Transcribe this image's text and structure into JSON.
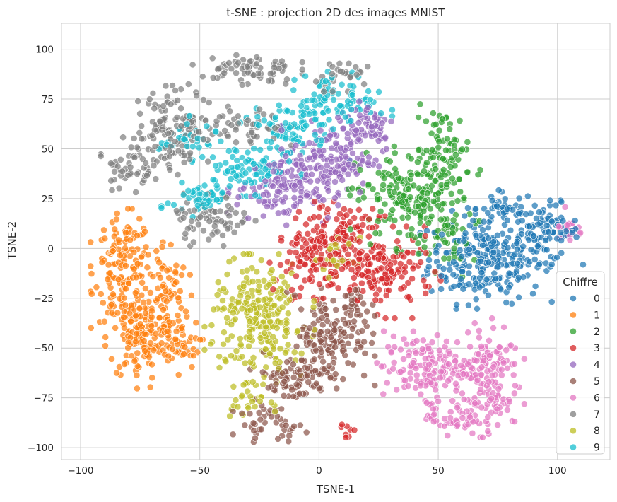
{
  "chart_data": {
    "type": "scatter",
    "title": "t-SNE : projection 2D des images MNIST",
    "xlabel": "TSNE-1",
    "ylabel": "TSNE-2",
    "xlim": [
      -108,
      122
    ],
    "ylim": [
      -106,
      113
    ],
    "xticks": [
      -100,
      -50,
      0,
      50,
      100
    ],
    "yticks": [
      -100,
      -75,
      -50,
      -25,
      0,
      25,
      50,
      75,
      100
    ],
    "xtick_labels": [
      "−100",
      "−50",
      "0",
      "50",
      "100"
    ],
    "ytick_labels": [
      "−100",
      "−75",
      "−50",
      "−25",
      "0",
      "25",
      "50",
      "75",
      "100"
    ],
    "grid": true,
    "legend": {
      "title": "Chiffre",
      "placement": "bottom-right"
    },
    "series": [
      {
        "name": "0",
        "color": "#1f77b4",
        "clusters": [
          {
            "cx": 70,
            "cy": -5,
            "sx": 12,
            "sy": 11,
            "n": 260
          },
          {
            "cx": 95,
            "cy": 8,
            "sx": 7,
            "sy": 7,
            "n": 90
          },
          {
            "cx": 78,
            "cy": 20,
            "sx": 6,
            "sy": 4,
            "n": 40
          }
        ]
      },
      {
        "name": "1",
        "color": "#ff7f0e",
        "clusters": [
          {
            "cx": -82,
            "cy": -10,
            "sx": 6,
            "sy": 13,
            "n": 140
          },
          {
            "cx": -75,
            "cy": -45,
            "sx": 7,
            "sy": 11,
            "n": 130
          },
          {
            "cx": -65,
            "cy": -25,
            "sx": 5,
            "sy": 15,
            "n": 90
          },
          {
            "cx": -58,
            "cy": -48,
            "sx": 4,
            "sy": 6,
            "n": 30
          }
        ]
      },
      {
        "name": "2",
        "color": "#2ca02c",
        "clusters": [
          {
            "cx": 40,
            "cy": 25,
            "sx": 12,
            "sy": 12,
            "n": 220
          },
          {
            "cx": 52,
            "cy": 50,
            "sx": 6,
            "sy": 10,
            "n": 60
          },
          {
            "cx": 58,
            "cy": 0,
            "sx": 4,
            "sy": 7,
            "n": 25
          }
        ]
      },
      {
        "name": "3",
        "color": "#d62728",
        "clusters": [
          {
            "cx": 0,
            "cy": -5,
            "sx": 9,
            "sy": 9,
            "n": 140
          },
          {
            "cx": 28,
            "cy": -12,
            "sx": 10,
            "sy": 10,
            "n": 140
          },
          {
            "cx": 10,
            "cy": 12,
            "sx": 8,
            "sy": 5,
            "n": 60
          },
          {
            "cx": 12,
            "cy": -92,
            "sx": 1.5,
            "sy": 2,
            "n": 8
          }
        ]
      },
      {
        "name": "4",
        "color": "#9467bd",
        "clusters": [
          {
            "cx": -15,
            "cy": 30,
            "sx": 10,
            "sy": 8,
            "n": 130
          },
          {
            "cx": 5,
            "cy": 45,
            "sx": 9,
            "sy": 9,
            "n": 130
          },
          {
            "cx": 20,
            "cy": 62,
            "sx": 6,
            "sy": 7,
            "n": 60
          }
        ]
      },
      {
        "name": "5",
        "color": "#8c564b",
        "clusters": [
          {
            "cx": 5,
            "cy": -45,
            "sx": 8,
            "sy": 11,
            "n": 140
          },
          {
            "cx": -12,
            "cy": -65,
            "sx": 8,
            "sy": 6,
            "n": 80
          },
          {
            "cx": -20,
            "cy": -88,
            "sx": 7,
            "sy": 4,
            "n": 40
          },
          {
            "cx": 15,
            "cy": -30,
            "sx": 4,
            "sy": 6,
            "n": 30
          }
        ]
      },
      {
        "name": "6",
        "color": "#e377c2",
        "clusters": [
          {
            "cx": 45,
            "cy": -60,
            "sx": 9,
            "sy": 8,
            "n": 140
          },
          {
            "cx": 70,
            "cy": -65,
            "sx": 7,
            "sy": 13,
            "n": 140
          },
          {
            "cx": 57,
            "cy": -85,
            "sx": 6,
            "sy": 4,
            "n": 50
          },
          {
            "cx": 105,
            "cy": 12,
            "sx": 3,
            "sy": 6,
            "n": 20
          }
        ]
      },
      {
        "name": "7",
        "color": "#7f7f7f",
        "clusters": [
          {
            "cx": -60,
            "cy": 60,
            "sx": 8,
            "sy": 10,
            "n": 130
          },
          {
            "cx": -80,
            "cy": 42,
            "sx": 5,
            "sy": 6,
            "n": 50
          },
          {
            "cx": -30,
            "cy": 90,
            "sx": 10,
            "sy": 4,
            "n": 70
          },
          {
            "cx": -45,
            "cy": 15,
            "sx": 8,
            "sy": 6,
            "n": 70
          },
          {
            "cx": -30,
            "cy": 60,
            "sx": 8,
            "sy": 6,
            "n": 50
          },
          {
            "cx": 10,
            "cy": 88,
            "sx": 6,
            "sy": 4,
            "n": 30
          }
        ]
      },
      {
        "name": "8",
        "color": "#bcbd22",
        "clusters": [
          {
            "cx": -25,
            "cy": -35,
            "sx": 10,
            "sy": 14,
            "n": 240
          },
          {
            "cx": -30,
            "cy": -75,
            "sx": 5,
            "sy": 4,
            "n": 30
          },
          {
            "cx": 8,
            "cy": -5,
            "sx": 4,
            "sy": 5,
            "n": 25
          }
        ]
      },
      {
        "name": "9",
        "color": "#17becf",
        "clusters": [
          {
            "cx": -30,
            "cy": 40,
            "sx": 10,
            "sy": 6,
            "n": 90
          },
          {
            "cx": -10,
            "cy": 60,
            "sx": 10,
            "sy": 7,
            "n": 90
          },
          {
            "cx": 10,
            "cy": 75,
            "sx": 9,
            "sy": 6,
            "n": 70
          },
          {
            "cx": -50,
            "cy": 25,
            "sx": 7,
            "sy": 4,
            "n": 45
          },
          {
            "cx": -55,
            "cy": 55,
            "sx": 6,
            "sy": 5,
            "n": 35
          }
        ]
      }
    ]
  }
}
